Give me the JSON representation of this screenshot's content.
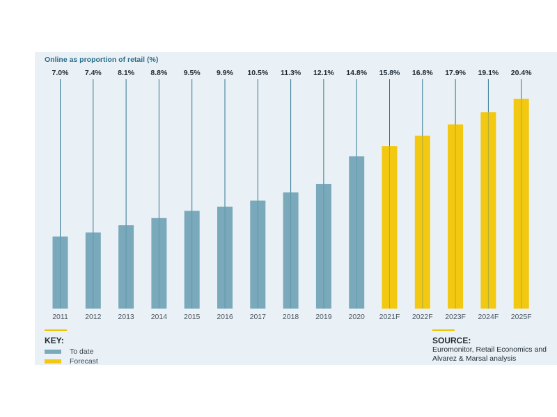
{
  "chart_data": {
    "type": "bar",
    "title": "Online as proportion of retail (%)",
    "categories": [
      "2011",
      "2012",
      "2013",
      "2014",
      "2015",
      "2016",
      "2017",
      "2018",
      "2019",
      "2020",
      "2021F",
      "2022F",
      "2023F",
      "2024F",
      "2025F"
    ],
    "values": [
      7.0,
      7.4,
      8.1,
      8.8,
      9.5,
      9.9,
      10.5,
      11.3,
      12.1,
      14.8,
      15.8,
      16.8,
      17.9,
      19.1,
      20.4
    ],
    "value_labels": [
      "7.0%",
      "7.4%",
      "8.1%",
      "8.8%",
      "9.5%",
      "9.9%",
      "10.5%",
      "11.3%",
      "12.1%",
      "14.8%",
      "15.8%",
      "16.8%",
      "17.9%",
      "19.1%",
      "20.4%"
    ],
    "series_type": [
      "to_date",
      "to_date",
      "to_date",
      "to_date",
      "to_date",
      "to_date",
      "to_date",
      "to_date",
      "to_date",
      "to_date",
      "forecast",
      "forecast",
      "forecast",
      "forecast",
      "forecast"
    ],
    "xlabel": "",
    "ylabel": "",
    "ylim": [
      0,
      21
    ],
    "grid": false,
    "legend_position": "bottom-left"
  },
  "colors": {
    "to_date": "#7aa9bb",
    "forecast": "#f2c811",
    "leader_line": "#2e7590",
    "panel_bg": "#eaf1f6",
    "rule": "#f0c300"
  },
  "key": {
    "title": "KEY:",
    "items": [
      {
        "label": "To date",
        "color": "#7aa9bb"
      },
      {
        "label": "Forecast",
        "color": "#f2c811"
      }
    ]
  },
  "source": {
    "title": "SOURCE:",
    "text": "Euromonitor, Retail Economics and Alvarez & Marsal analysis"
  }
}
